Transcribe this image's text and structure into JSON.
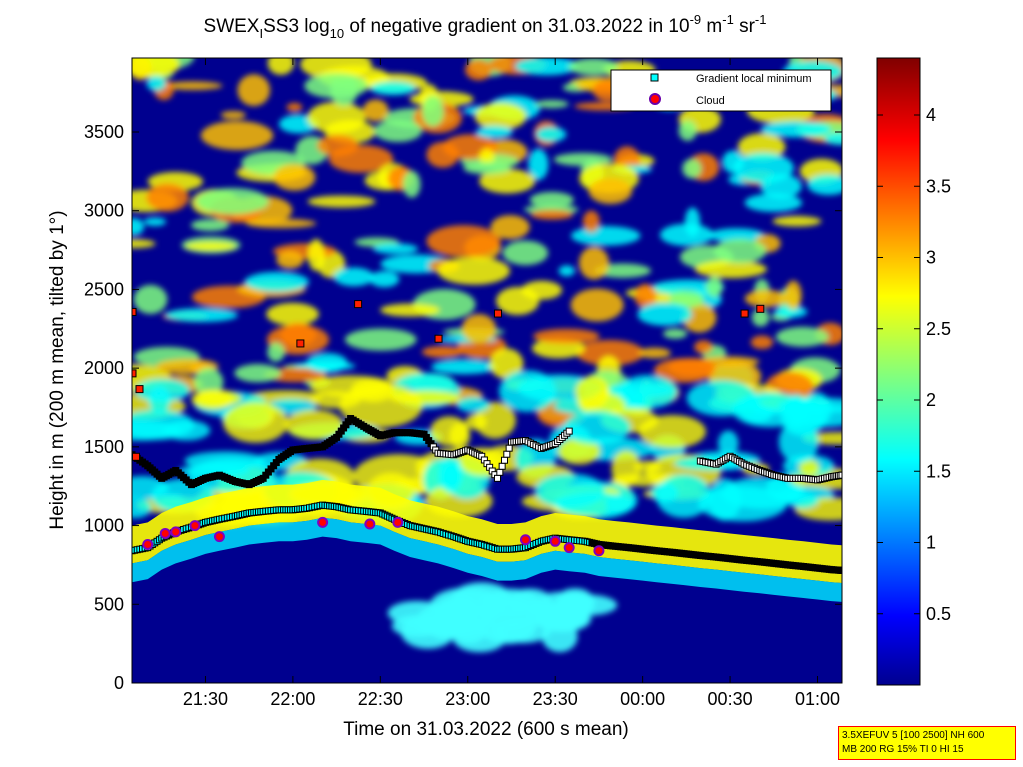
{
  "title": {
    "prefix": "SWEX",
    "sub1": "I",
    "mid": "SS3 log",
    "sub2": "10",
    "rest": " of negative gradient on 31.03.2022 in 10",
    "sup1": "-9",
    "unit1": " m",
    "sup2": "-1",
    "unit2": " sr",
    "sup3": "-1"
  },
  "settings_lines": [
    "3.5XEFUV 5 [100 2500] NH 600",
    "MB 200 RG 15% TI 0 HI 15"
  ],
  "chart_data": {
    "type": "heatmap",
    "xlabel": "Time on 31.03.2022 (600 s mean)",
    "ylabel": "Height in m (200 m mean, tilted by 1°)",
    "x_range_hours": [
      21.08,
      25.14
    ],
    "y_range_m": [
      0,
      3970
    ],
    "x_ticks": [
      {
        "label": "21:30",
        "hours": 21.5
      },
      {
        "label": "22:00",
        "hours": 22.0
      },
      {
        "label": "22:30",
        "hours": 22.5
      },
      {
        "label": "23:00",
        "hours": 23.0
      },
      {
        "label": "23:30",
        "hours": 23.5
      },
      {
        "label": "00:00",
        "hours": 24.0
      },
      {
        "label": "00:30",
        "hours": 24.5
      },
      {
        "label": "01:00",
        "hours": 25.0
      }
    ],
    "y_ticks": [
      0,
      500,
      1000,
      1500,
      2000,
      2500,
      3000,
      3500
    ],
    "colorbar": {
      "range": [
        0,
        4.4
      ],
      "ticks": [
        0.5,
        1,
        1.5,
        2,
        2.5,
        3,
        3.5,
        4
      ],
      "colormap": "jet"
    },
    "legend": {
      "placement": "top-right",
      "entries": [
        {
          "label": "Gradient local minimum",
          "marker": "square",
          "color": "#00ffff"
        },
        {
          "label": "Cloud",
          "marker": "circle",
          "color": "#ff0000"
        }
      ]
    },
    "gradient_minimum_series": [
      {
        "name": "lower layer",
        "points": [
          [
            21.08,
            840
          ],
          [
            21.17,
            860
          ],
          [
            21.25,
            920
          ],
          [
            21.33,
            960
          ],
          [
            21.42,
            990
          ],
          [
            21.5,
            1020
          ],
          [
            21.58,
            1040
          ],
          [
            21.67,
            1060
          ],
          [
            21.75,
            1080
          ],
          [
            21.83,
            1090
          ],
          [
            21.92,
            1100
          ],
          [
            22.0,
            1100
          ],
          [
            22.08,
            1110
          ],
          [
            22.17,
            1130
          ],
          [
            22.25,
            1120
          ],
          [
            22.33,
            1100
          ],
          [
            22.42,
            1090
          ],
          [
            22.5,
            1080
          ],
          [
            22.58,
            1040
          ],
          [
            22.67,
            1000
          ],
          [
            22.75,
            980
          ],
          [
            22.83,
            960
          ],
          [
            22.92,
            930
          ],
          [
            23.0,
            900
          ],
          [
            23.08,
            880
          ],
          [
            23.17,
            850
          ],
          [
            23.25,
            850
          ],
          [
            23.33,
            860
          ],
          [
            23.42,
            900
          ],
          [
            23.5,
            920
          ],
          [
            23.58,
            910
          ],
          [
            23.67,
            900
          ],
          [
            23.75,
            880
          ],
          [
            23.83,
            870
          ],
          [
            23.92,
            860
          ],
          [
            24.0,
            850
          ],
          [
            24.08,
            840
          ],
          [
            24.17,
            830
          ],
          [
            24.25,
            820
          ],
          [
            24.33,
            810
          ],
          [
            24.42,
            800
          ],
          [
            24.5,
            790
          ],
          [
            24.58,
            780
          ],
          [
            24.67,
            770
          ],
          [
            24.75,
            760
          ],
          [
            24.83,
            750
          ],
          [
            24.92,
            740
          ],
          [
            25.0,
            730
          ],
          [
            25.08,
            720
          ],
          [
            25.14,
            715
          ]
        ]
      },
      {
        "name": "upper layer",
        "points": [
          [
            21.08,
            1450
          ],
          [
            21.17,
            1380
          ],
          [
            21.25,
            1300
          ],
          [
            21.33,
            1350
          ],
          [
            21.42,
            1260
          ],
          [
            21.5,
            1300
          ],
          [
            21.58,
            1320
          ],
          [
            21.67,
            1280
          ],
          [
            21.75,
            1260
          ],
          [
            21.83,
            1300
          ],
          [
            21.92,
            1420
          ],
          [
            22.0,
            1480
          ],
          [
            22.08,
            1490
          ],
          [
            22.17,
            1500
          ],
          [
            22.25,
            1560
          ],
          [
            22.33,
            1680
          ],
          [
            22.42,
            1620
          ],
          [
            22.5,
            1570
          ],
          [
            22.58,
            1590
          ],
          [
            22.67,
            1590
          ],
          [
            22.75,
            1580
          ],
          [
            22.83,
            1460
          ],
          [
            22.92,
            1450
          ],
          [
            23.0,
            1480
          ],
          [
            23.08,
            1440
          ],
          [
            23.17,
            1300
          ],
          [
            23.25,
            1530
          ],
          [
            23.33,
            1540
          ],
          [
            23.42,
            1490
          ],
          [
            23.5,
            1520
          ],
          [
            23.58,
            1600
          ],
          [
            24.33,
            1410
          ],
          [
            24.42,
            1390
          ],
          [
            24.5,
            1440
          ],
          [
            24.58,
            1390
          ],
          [
            24.67,
            1350
          ],
          [
            24.75,
            1320
          ],
          [
            24.83,
            1300
          ],
          [
            24.92,
            1300
          ],
          [
            25.0,
            1290
          ],
          [
            25.08,
            1310
          ],
          [
            25.14,
            1320
          ]
        ]
      }
    ],
    "cloud_points": [
      [
        21.08,
        2360
      ],
      [
        21.08,
        1970
      ],
      [
        21.12,
        1870
      ],
      [
        21.1,
        1440
      ],
      [
        21.17,
        880
      ],
      [
        21.27,
        950
      ],
      [
        21.33,
        960
      ],
      [
        21.44,
        1000
      ],
      [
        21.58,
        930
      ],
      [
        22.04,
        2160
      ],
      [
        22.17,
        1020
      ],
      [
        22.37,
        2410
      ],
      [
        22.44,
        1010
      ],
      [
        22.6,
        1020
      ],
      [
        22.83,
        2190
      ],
      [
        23.17,
        2350
      ],
      [
        23.33,
        910
      ],
      [
        23.5,
        900
      ],
      [
        23.58,
        860
      ],
      [
        23.75,
        840
      ],
      [
        24.58,
        2350
      ],
      [
        24.67,
        2380
      ]
    ]
  }
}
